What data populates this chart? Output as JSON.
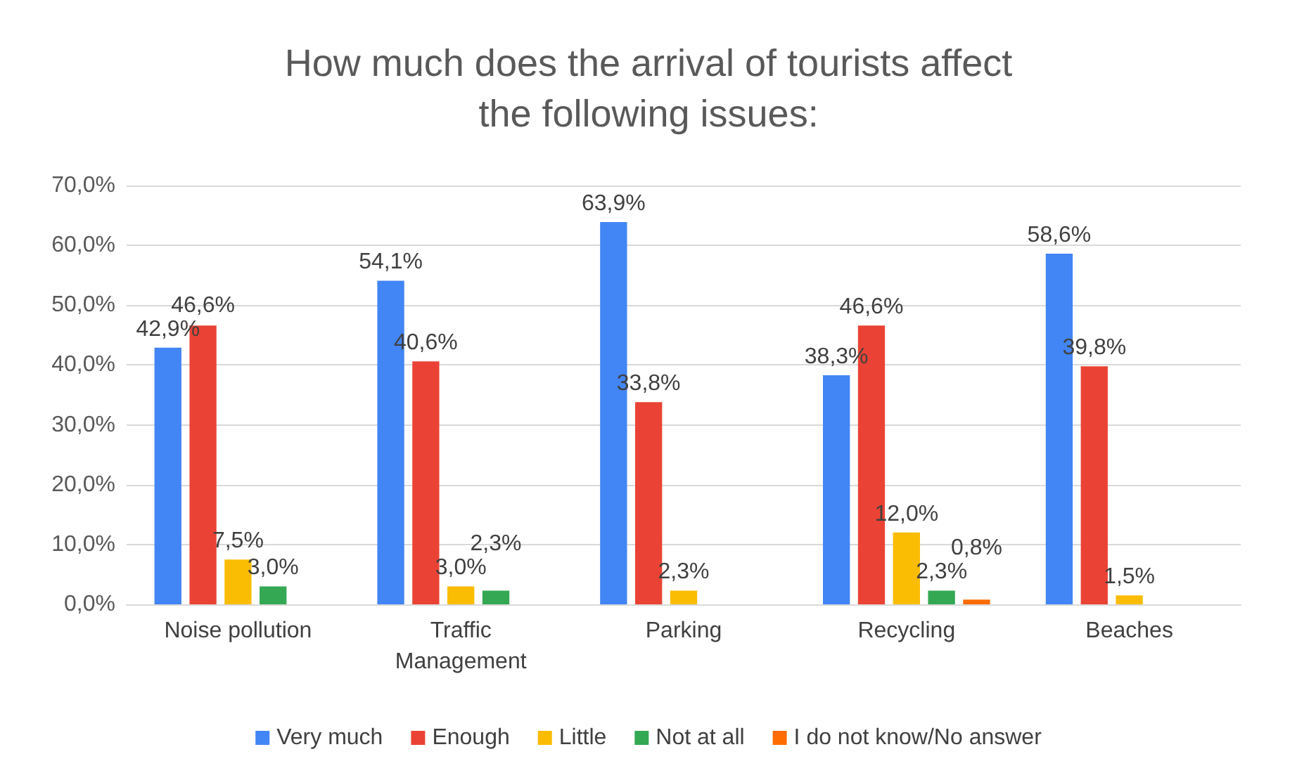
{
  "chart_data": {
    "type": "bar",
    "title": "How much does the arrival of tourists affect\nthe following issues:",
    "categories": [
      "Noise pollution",
      "Traffic\nManagement",
      "Parking",
      "Recycling",
      "Beaches"
    ],
    "series": [
      {
        "name": "Very much",
        "color": "#4285f4",
        "values": [
          42.9,
          54.1,
          63.9,
          38.3,
          58.6
        ],
        "value_labels": [
          "42,9%",
          "54,1%",
          "63,9%",
          "38,3%",
          "58,6%"
        ]
      },
      {
        "name": "Enough",
        "color": "#ea4335",
        "values": [
          46.6,
          40.6,
          33.8,
          46.6,
          39.8
        ],
        "value_labels": [
          "46,6%",
          "40,6%",
          "33,8%",
          "46,6%",
          "39,8%"
        ]
      },
      {
        "name": "Little",
        "color": "#fbbc04",
        "values": [
          7.5,
          3.0,
          2.3,
          12.0,
          1.5
        ],
        "value_labels": [
          "7,5%",
          "3,0%",
          "2,3%",
          "12,0%",
          "1,5%"
        ]
      },
      {
        "name": "Not at all",
        "color": "#34a853",
        "values": [
          3.0,
          2.3,
          null,
          2.3,
          null
        ],
        "value_labels": [
          "3,0%",
          "2,3%",
          null,
          "2,3%",
          null
        ]
      },
      {
        "name": "I do not know/No answer",
        "color": "#ff6d01",
        "values": [
          null,
          null,
          null,
          0.8,
          null
        ],
        "value_labels": [
          null,
          null,
          null,
          "0,8%",
          null
        ]
      }
    ],
    "ylim": [
      0,
      70
    ],
    "yticks": [
      {
        "value": 0,
        "label": "0,0%"
      },
      {
        "value": 10,
        "label": "10,0%"
      },
      {
        "value": 20,
        "label": "20,0%"
      },
      {
        "value": 30,
        "label": "30,0%"
      },
      {
        "value": 40,
        "label": "40,0%"
      },
      {
        "value": 50,
        "label": "50,0%"
      },
      {
        "value": 60,
        "label": "60,0%"
      },
      {
        "value": 70,
        "label": "70,0%"
      }
    ],
    "grid": "y",
    "legend": "bottom"
  }
}
